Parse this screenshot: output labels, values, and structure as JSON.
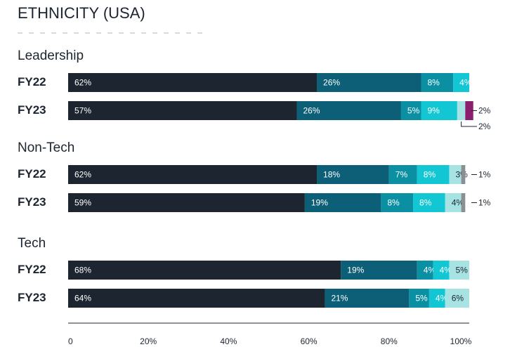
{
  "chart_data": {
    "type": "stacked_bar_h",
    "title": "ETHNICITY (USA)",
    "colors": [
      "#1c2530",
      "#0d5f78",
      "#0a8fa3",
      "#12c7d3",
      "#a8e3e3",
      "#8a8f94",
      "#8b1f6e"
    ],
    "xlim": [
      0,
      100
    ],
    "xticks": [
      0,
      {
        "value": 20,
        "label": "20%"
      },
      {
        "value": 40,
        "label": "40%"
      },
      {
        "value": 60,
        "label": "60%"
      },
      {
        "value": 80,
        "label": "80%"
      },
      {
        "value": 100,
        "label": "100%"
      }
    ],
    "groups": [
      {
        "name": "Leadership",
        "bars": [
          {
            "label": "FY22",
            "values": [
              62,
              26,
              8,
              4,
              null,
              null,
              null
            ],
            "value_labels": [
              "62%",
              "26%",
              "8%",
              "4%",
              null,
              null,
              null
            ]
          },
          {
            "label": "FY23",
            "values": [
              57,
              26,
              5,
              9,
              2,
              null,
              2
            ],
            "value_labels": [
              "57%",
              "26%",
              "5%",
              "9%",
              "2%",
              null,
              "2%"
            ]
          }
        ]
      },
      {
        "name": "Non-Tech",
        "bars": [
          {
            "label": "FY22",
            "values": [
              62,
              18,
              7,
              8,
              3,
              1,
              null
            ],
            "value_labels": [
              "62%",
              "18%",
              "7%",
              "8%",
              "3%",
              "1%",
              null
            ]
          },
          {
            "label": "FY23",
            "values": [
              59,
              19,
              8,
              8,
              4,
              1,
              null
            ],
            "value_labels": [
              "59%",
              "19%",
              "8%",
              "8%",
              "4%",
              "1%",
              null
            ]
          }
        ]
      },
      {
        "name": "Tech",
        "bars": [
          {
            "label": "FY22",
            "values": [
              68,
              19,
              4,
              4,
              5,
              null,
              null
            ],
            "value_labels": [
              "68%",
              "19%",
              "4%",
              "4%",
              "5%",
              null,
              null
            ]
          },
          {
            "label": "FY23",
            "values": [
              64,
              21,
              5,
              4,
              6,
              null,
              null
            ],
            "value_labels": [
              "64%",
              "21%",
              "5%",
              "4%",
              "6%",
              null,
              null
            ]
          }
        ]
      }
    ]
  }
}
